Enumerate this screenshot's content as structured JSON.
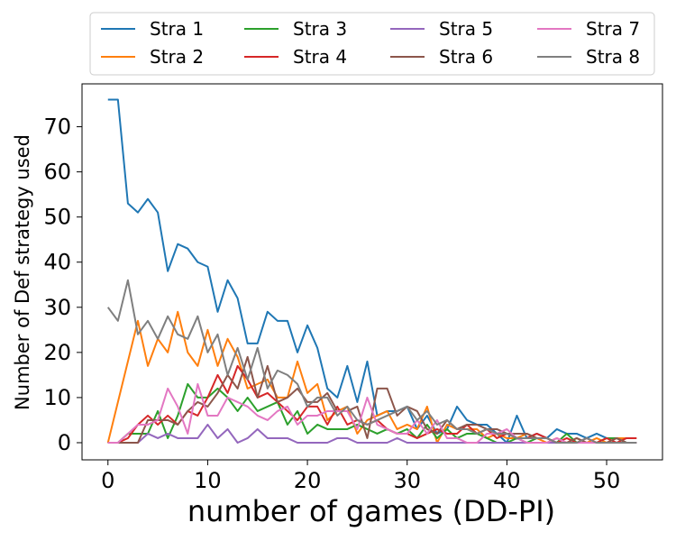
{
  "chart_data": {
    "type": "line",
    "xlabel": "number of games (DD-PI)",
    "ylabel": "Number of Def strategy used",
    "xlim": [
      -2.6,
      55.6
    ],
    "ylim": [
      -3.8,
      79.5
    ],
    "xticks": [
      0,
      10,
      20,
      30,
      40,
      50
    ],
    "yticks": [
      0,
      10,
      20,
      30,
      40,
      50,
      60,
      70
    ],
    "grid": false,
    "legend_placement": "top, outside plot, 4 columns",
    "series": [
      {
        "name": "Stra 1",
        "color": "#1f77b4",
        "x": [
          0,
          1,
          2,
          3,
          4,
          5,
          6,
          7,
          8,
          9,
          10,
          11,
          12,
          13,
          14,
          15,
          16,
          17,
          18,
          19,
          20,
          21,
          22,
          23,
          24,
          25,
          26,
          27,
          28,
          29,
          30,
          31,
          32,
          33,
          34,
          35,
          36,
          37,
          38,
          39,
          40,
          41,
          42,
          43,
          44,
          45,
          46,
          47,
          48,
          49,
          50,
          51,
          52,
          53
        ],
        "values": [
          76,
          76,
          53,
          51,
          54,
          51,
          38,
          44,
          43,
          40,
          39,
          29,
          36,
          32,
          22,
          22,
          29,
          27,
          27,
          20,
          26,
          21,
          12,
          10,
          17,
          9,
          18,
          6,
          7,
          7,
          8,
          3,
          6,
          2,
          3,
          8,
          5,
          4,
          4,
          2,
          0,
          6,
          1,
          2,
          1,
          3,
          2,
          2,
          1,
          2,
          1,
          1,
          0,
          0
        ]
      },
      {
        "name": "Stra 2",
        "color": "#ff7f0e",
        "x": [
          0,
          1,
          2,
          3,
          4,
          5,
          6,
          7,
          8,
          9,
          10,
          11,
          12,
          13,
          14,
          15,
          16,
          17,
          18,
          19,
          20,
          21,
          22,
          23,
          24,
          25,
          26,
          27,
          28,
          29,
          30,
          31,
          32,
          33,
          34,
          35,
          36,
          37,
          38,
          39,
          40,
          41,
          42,
          43,
          44,
          45,
          46,
          47,
          48,
          49,
          50,
          51,
          52,
          53
        ],
        "values": [
          0,
          9,
          18,
          27,
          17,
          23,
          20,
          29,
          20,
          17,
          25,
          17,
          23,
          19,
          12,
          13,
          14,
          10,
          10,
          18,
          11,
          13,
          5,
          7,
          8,
          2,
          5,
          6,
          7,
          3,
          4,
          3,
          8,
          0,
          4,
          3,
          3,
          3,
          1,
          2,
          1,
          1,
          2,
          1,
          0,
          1,
          0,
          1,
          0,
          1,
          0,
          1,
          1,
          1
        ]
      },
      {
        "name": "Stra 3",
        "color": "#2ca02c",
        "x": [
          0,
          1,
          2,
          3,
          4,
          5,
          6,
          7,
          8,
          9,
          10,
          11,
          12,
          13,
          14,
          15,
          16,
          17,
          18,
          19,
          20,
          21,
          22,
          23,
          24,
          25,
          26,
          27,
          28,
          29,
          30,
          31,
          32,
          33,
          34,
          35,
          36,
          37,
          38,
          39,
          40,
          41,
          42,
          43,
          44,
          45,
          46,
          47,
          48,
          49,
          50,
          51,
          52,
          53
        ],
        "values": [
          0,
          0,
          2,
          2,
          2,
          7,
          1,
          6,
          13,
          10,
          10,
          12,
          10,
          7,
          10,
          7,
          8,
          9,
          4,
          7,
          2,
          4,
          3,
          3,
          3,
          4,
          3,
          2,
          3,
          2,
          3,
          1,
          4,
          1,
          3,
          1,
          2,
          2,
          1,
          0,
          0,
          1,
          0,
          1,
          1,
          0,
          2,
          0,
          0,
          0,
          1,
          1,
          0,
          0
        ]
      },
      {
        "name": "Stra 4",
        "color": "#d62728",
        "x": [
          0,
          1,
          2,
          3,
          4,
          5,
          6,
          7,
          8,
          9,
          10,
          11,
          12,
          13,
          14,
          15,
          16,
          17,
          18,
          19,
          20,
          21,
          22,
          23,
          24,
          25,
          26,
          27,
          28,
          29,
          30,
          31,
          32,
          33,
          34,
          35,
          36,
          37,
          38,
          39,
          40,
          41,
          42,
          43,
          44,
          45,
          46,
          47,
          48,
          49,
          50,
          51,
          52,
          53
        ],
        "values": [
          0,
          0,
          1,
          4,
          6,
          4,
          6,
          4,
          7,
          6,
          10,
          15,
          11,
          17,
          14,
          10,
          11,
          9,
          7,
          5,
          8,
          8,
          4,
          8,
          4,
          5,
          4,
          5,
          3,
          2,
          2,
          1,
          2,
          3,
          2,
          2,
          4,
          2,
          3,
          1,
          2,
          1,
          1,
          2,
          1,
          0,
          1,
          0,
          1,
          0,
          1,
          0,
          1,
          1
        ]
      },
      {
        "name": "Stra 5",
        "color": "#9467bd",
        "x": [
          0,
          1,
          2,
          3,
          4,
          5,
          6,
          7,
          8,
          9,
          10,
          11,
          12,
          13,
          14,
          15,
          16,
          17,
          18,
          19,
          20,
          21,
          22,
          23,
          24,
          25,
          26,
          27,
          28,
          29,
          30,
          31,
          32,
          33,
          34,
          35,
          36,
          37,
          38,
          39,
          40,
          41,
          42,
          43,
          44,
          45,
          46,
          47,
          48,
          49,
          50,
          51,
          52,
          53
        ],
        "values": [
          0,
          0,
          0,
          0,
          2,
          1,
          2,
          1,
          1,
          1,
          4,
          1,
          3,
          0,
          1,
          3,
          1,
          1,
          1,
          0,
          0,
          0,
          0,
          1,
          1,
          0,
          0,
          0,
          0,
          1,
          0,
          0,
          0,
          0,
          0,
          0,
          0,
          0,
          0,
          0,
          0,
          0,
          0,
          0,
          0,
          0,
          0,
          0,
          0,
          0,
          0,
          0,
          0,
          0
        ]
      },
      {
        "name": "Stra 6",
        "color": "#8c564b",
        "x": [
          0,
          1,
          2,
          3,
          4,
          5,
          6,
          7,
          8,
          9,
          10,
          11,
          12,
          13,
          14,
          15,
          16,
          17,
          18,
          19,
          20,
          21,
          22,
          23,
          24,
          25,
          26,
          27,
          28,
          29,
          30,
          31,
          32,
          33,
          34,
          35,
          36,
          37,
          38,
          39,
          40,
          41,
          42,
          43,
          44,
          45,
          46,
          47,
          48,
          49,
          50,
          51,
          52,
          53
        ],
        "values": [
          0,
          0,
          0,
          0,
          5,
          5,
          5,
          4,
          7,
          9,
          8,
          11,
          15,
          12,
          19,
          10,
          17,
          9,
          10,
          12,
          9,
          9,
          11,
          7,
          7,
          8,
          1,
          12,
          12,
          6,
          8,
          7,
          3,
          2,
          5,
          3,
          4,
          4,
          3,
          3,
          2,
          2,
          2,
          1,
          1,
          0,
          0,
          1,
          0,
          0,
          0,
          1,
          0,
          0
        ]
      },
      {
        "name": "Stra 7",
        "color": "#e377c2",
        "x": [
          0,
          1,
          2,
          3,
          4,
          5,
          6,
          7,
          8,
          9,
          10,
          11,
          12,
          13,
          14,
          15,
          16,
          17,
          18,
          19,
          20,
          21,
          22,
          23,
          24,
          25,
          26,
          27,
          28,
          29,
          30,
          31,
          32,
          33,
          34,
          35,
          36,
          37,
          38,
          39,
          40,
          41,
          42,
          43,
          44,
          45,
          46,
          47,
          48,
          49,
          50,
          51,
          52,
          53
        ],
        "values": [
          0,
          0,
          2,
          4,
          4,
          5,
          12,
          8,
          2,
          13,
          6,
          6,
          10,
          9,
          8,
          6,
          5,
          7,
          8,
          4,
          6,
          6,
          7,
          7,
          7,
          3,
          10,
          4,
          3,
          2,
          2,
          5,
          2,
          5,
          1,
          1,
          0,
          0,
          2,
          2,
          3,
          1,
          0,
          0,
          0,
          1,
          0,
          0,
          0,
          0,
          0,
          0,
          0,
          0
        ]
      },
      {
        "name": "Stra 8",
        "color": "#7f7f7f",
        "x": [
          0,
          1,
          2,
          3,
          4,
          5,
          6,
          7,
          8,
          9,
          10,
          11,
          12,
          13,
          14,
          15,
          16,
          17,
          18,
          19,
          20,
          21,
          22,
          23,
          24,
          25,
          26,
          27,
          28,
          29,
          30,
          31,
          32,
          33,
          34,
          35,
          36,
          37,
          38,
          39,
          40,
          41,
          42,
          43,
          44,
          45,
          46,
          47,
          48,
          49,
          50,
          51,
          52,
          53
        ],
        "values": [
          30,
          27,
          36,
          24,
          27,
          23,
          28,
          24,
          23,
          28,
          20,
          24,
          15,
          21,
          14,
          21,
          12,
          16,
          15,
          13,
          8,
          10,
          10,
          6,
          8,
          5,
          4,
          5,
          6,
          7,
          8,
          5,
          7,
          4,
          5,
          3,
          3,
          2,
          3,
          2,
          2,
          1,
          1,
          1,
          1,
          0,
          0,
          0,
          1,
          0,
          0,
          0,
          0,
          0
        ]
      }
    ]
  }
}
